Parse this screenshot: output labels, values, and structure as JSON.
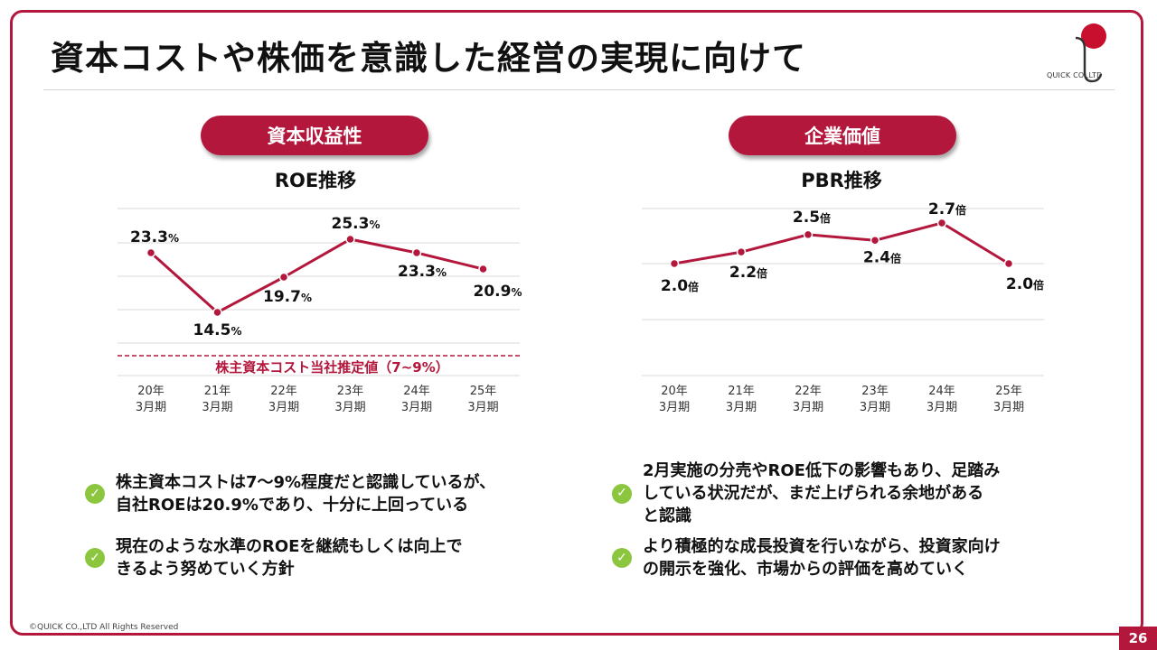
{
  "header": {
    "title": "資本コストや株価を意識した経営の実現に向けて"
  },
  "logo": {
    "text": "QUICK CO.,LTD"
  },
  "left": {
    "pill": "資本収益性",
    "bullets": [
      [
        "株主資本コストは7～9%程度だと認識しているが、",
        "自社ROEは20.9%であり、十分に上回っている"
      ],
      [
        "現在のような水準のROEを継続もしくは向上で",
        "きるよう努めていく方針"
      ]
    ]
  },
  "right": {
    "pill": "企業価値",
    "bullets": [
      [
        "2月実施の分売やROE低下の影響もあり、足踏み",
        "している状況だが、まだ上げられる余地がある",
        "と認識"
      ],
      [
        "より積極的な成長投資を行いながら、投資家向け",
        "の開示を強化、市場からの評価を高めていく"
      ]
    ]
  },
  "chart_data": [
    {
      "type": "line",
      "title": "ROE推移",
      "categories": [
        [
          "20年",
          "3月期"
        ],
        [
          "21年",
          "3月期"
        ],
        [
          "22年",
          "3月期"
        ],
        [
          "23年",
          "3月期"
        ],
        [
          "24年",
          "3月期"
        ],
        [
          "25年",
          "3月期"
        ]
      ],
      "values": [
        23.3,
        14.5,
        19.7,
        25.3,
        23.3,
        20.9
      ],
      "value_labels": [
        "23.3",
        "14.5",
        "19.7",
        "25.3",
        "23.3",
        "20.9"
      ],
      "unit": "%",
      "reference_line": {
        "label": "株主資本コスト当社推定値（7~9%）",
        "style": "dashed"
      },
      "grid": true,
      "color": "#b3173c"
    },
    {
      "type": "line",
      "title": "PBR推移",
      "categories": [
        [
          "20年",
          "3月期"
        ],
        [
          "21年",
          "3月期"
        ],
        [
          "22年",
          "3月期"
        ],
        [
          "23年",
          "3月期"
        ],
        [
          "24年",
          "3月期"
        ],
        [
          "25年",
          "3月期"
        ]
      ],
      "values": [
        2.0,
        2.2,
        2.5,
        2.4,
        2.7,
        2.0
      ],
      "value_labels": [
        "2.0",
        "2.2",
        "2.5",
        "2.4",
        "2.7",
        "2.0"
      ],
      "unit": "倍",
      "grid": true,
      "color": "#b3173c"
    }
  ],
  "footer": {
    "copyright": "©QUICK CO.,LTD All Rights Reserved",
    "page": "26"
  }
}
